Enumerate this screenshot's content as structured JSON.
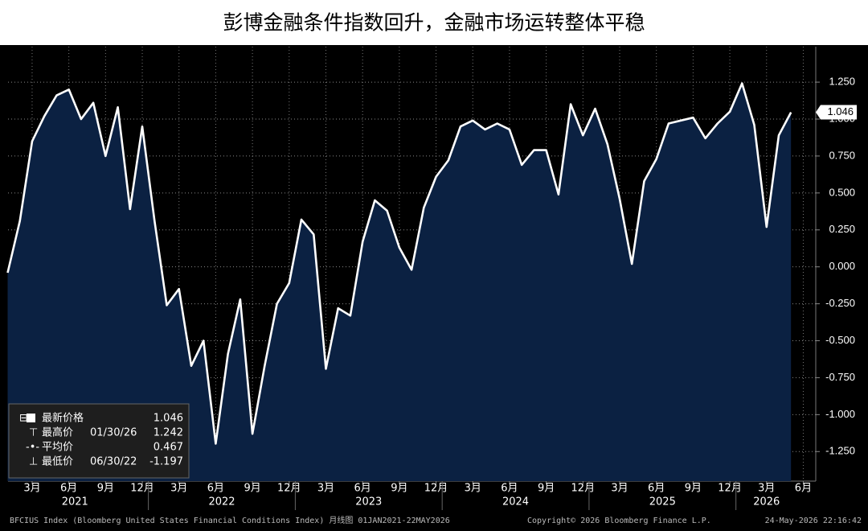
{
  "chart_data": {
    "type": "area",
    "title": "彭博金融条件指数回升，金融市场运转整体平稳",
    "x": [
      "2021-01",
      "2021-02",
      "2021-03",
      "2021-04",
      "2021-05",
      "2021-06",
      "2021-07",
      "2021-08",
      "2021-09",
      "2021-10",
      "2021-11",
      "2021-12",
      "2022-01",
      "2022-02",
      "2022-03",
      "2022-04",
      "2022-05",
      "2022-06",
      "2022-07",
      "2022-08",
      "2022-09",
      "2022-10",
      "2022-11",
      "2022-12",
      "2023-01",
      "2023-02",
      "2023-03",
      "2023-04",
      "2023-05",
      "2023-06",
      "2023-07",
      "2023-08",
      "2023-09",
      "2023-10",
      "2023-11",
      "2023-12",
      "2024-01",
      "2024-02",
      "2024-03",
      "2024-04",
      "2024-05",
      "2024-06",
      "2024-07",
      "2024-08",
      "2024-09",
      "2024-10",
      "2024-11",
      "2024-12",
      "2025-01",
      "2025-02",
      "2025-03",
      "2025-04",
      "2025-05",
      "2025-06",
      "2025-07",
      "2025-08",
      "2025-09",
      "2025-10",
      "2025-11",
      "2025-12",
      "2026-01",
      "2026-02",
      "2026-03",
      "2026-04",
      "2026-05"
    ],
    "series": [
      {
        "name": "BFCIUS Index",
        "color": "#ffffff",
        "fill": "#0b2142",
        "values": [
          -0.04,
          0.31,
          0.85,
          1.02,
          1.16,
          1.2,
          1.0,
          1.11,
          0.75,
          1.08,
          0.39,
          0.95,
          0.31,
          -0.26,
          -0.15,
          -0.67,
          -0.5,
          -1.197,
          -0.59,
          -0.22,
          -1.13,
          -0.67,
          -0.25,
          -0.11,
          0.32,
          0.22,
          -0.69,
          -0.28,
          -0.33,
          0.17,
          0.45,
          0.38,
          0.13,
          -0.02,
          0.4,
          0.61,
          0.72,
          0.95,
          0.99,
          0.93,
          0.97,
          0.93,
          0.69,
          0.79,
          0.79,
          0.49,
          1.1,
          0.89,
          1.07,
          0.83,
          0.46,
          0.02,
          0.58,
          0.73,
          0.97,
          0.99,
          1.01,
          0.87,
          0.97,
          1.05,
          1.242,
          0.96,
          0.27,
          0.89,
          1.046
        ]
      }
    ],
    "ylim": [
      -1.45,
      1.49
    ],
    "yticks": [
      {
        "value": 1.25,
        "label": "1.250"
      },
      {
        "value": 1.0,
        "label": "1.000"
      },
      {
        "value": 0.75,
        "label": "0.750"
      },
      {
        "value": 0.5,
        "label": "0.500"
      },
      {
        "value": 0.25,
        "label": "0.250"
      },
      {
        "value": 0,
        "label": "0.000"
      },
      {
        "value": -0.25,
        "label": "-0.250"
      },
      {
        "value": -0.5,
        "label": "-0.500"
      },
      {
        "value": -0.75,
        "label": "-0.750"
      },
      {
        "value": -1.0,
        "label": "-1.000"
      },
      {
        "value": -1.25,
        "label": "-1.250"
      }
    ],
    "xticks": [
      {
        "value": "2021-03",
        "label": "3月"
      },
      {
        "value": "2021-06",
        "label": "6月"
      },
      {
        "value": "2021-09",
        "label": "9月"
      },
      {
        "value": "2021-12",
        "label": "12月"
      },
      {
        "value": "2022-03",
        "label": "3月"
      },
      {
        "value": "2022-06",
        "label": "6月"
      },
      {
        "value": "2022-09",
        "label": "9月"
      },
      {
        "value": "2022-12",
        "label": "12月"
      },
      {
        "value": "2023-03",
        "label": "3月"
      },
      {
        "value": "2023-06",
        "label": "6月"
      },
      {
        "value": "2023-09",
        "label": "9月"
      },
      {
        "value": "2023-12",
        "label": "12月"
      },
      {
        "value": "2024-03",
        "label": "3月"
      },
      {
        "value": "2024-06",
        "label": "6月"
      },
      {
        "value": "2024-09",
        "label": "9月"
      },
      {
        "value": "2024-12",
        "label": "12月"
      },
      {
        "value": "2025-03",
        "label": "3月"
      },
      {
        "value": "2025-06",
        "label": "6月"
      },
      {
        "value": "2025-09",
        "label": "9月"
      },
      {
        "value": "2025-12",
        "label": "12月"
      },
      {
        "value": "2026-03",
        "label": "3月"
      },
      {
        "value": "2026-06",
        "label": "6月"
      }
    ],
    "year_labels": [
      "2021",
      "2022",
      "2023",
      "2024",
      "2025",
      "2026"
    ],
    "grid": true,
    "stats": [
      {
        "label": "最新价格",
        "value": 1.046
      },
      {
        "label": "最高价",
        "date": "01/30/26",
        "value": 1.242
      },
      {
        "label": "平均价",
        "value": 0.467
      },
      {
        "label": "最低价",
        "date": "06/30/22",
        "value": -1.197
      }
    ],
    "footer": {
      "source": "BFCIUS Index (Bloomberg United States Financial Conditions Index) 月线图 01JAN2021-22MAY2026",
      "copyright": "Copyright© 2026 Bloomberg Finance L.P.",
      "timestamp": "24-May-2026 22:16:42"
    }
  }
}
